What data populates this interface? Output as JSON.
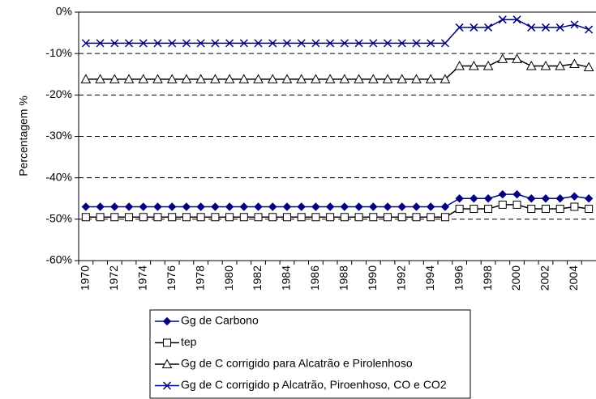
{
  "chart_data": {
    "type": "line",
    "y_label": "Percentagem %",
    "categories": [
      "1970",
      null,
      "1972",
      null,
      "1974",
      null,
      "1976",
      null,
      "1978",
      null,
      "1980",
      null,
      "1982",
      null,
      "1984",
      null,
      "1986",
      null,
      "1988",
      null,
      "1990",
      null,
      "1992",
      null,
      "1994",
      null,
      "1996",
      null,
      "1998",
      null,
      "2000",
      null,
      "2002",
      null,
      "2004",
      null
    ],
    "ylim": [
      -60,
      0
    ],
    "yticks": [
      {
        "value": -60,
        "label": "-60%"
      },
      {
        "value": -50,
        "label": "-50%"
      },
      {
        "value": -40,
        "label": "-40%"
      },
      {
        "value": -30,
        "label": "-30%"
      },
      {
        "value": -20,
        "label": "-20%"
      },
      {
        "value": -10,
        "label": "-10%"
      },
      {
        "value": 0,
        "label": "0%"
      }
    ],
    "grid": true,
    "series": [
      {
        "name": "Gg de Carbono",
        "color": "#000080",
        "marker": "diamond",
        "values": [
          -47,
          -47,
          -47,
          -47,
          -47,
          -47,
          -47,
          -47,
          -47,
          -47,
          -47,
          -47,
          -47,
          -47,
          -47,
          -47,
          -47,
          -47,
          -47,
          -47,
          -47,
          -47,
          -47,
          -47,
          -47,
          -47,
          -45,
          -45,
          -45,
          -44,
          -44,
          -45,
          -45,
          -45,
          -44.5,
          -45
        ]
      },
      {
        "name": "tep",
        "color": "#000000",
        "marker": "square",
        "values": [
          -49.5,
          -49.5,
          -49.5,
          -49.5,
          -49.5,
          -49.5,
          -49.5,
          -49.5,
          -49.5,
          -49.5,
          -49.5,
          -49.5,
          -49.5,
          -49.5,
          -49.5,
          -49.5,
          -49.5,
          -49.5,
          -49.5,
          -49.5,
          -49.5,
          -49.5,
          -49.5,
          -49.5,
          -49.5,
          -49.5,
          -47.5,
          -47.5,
          -47.5,
          -46.5,
          -46.5,
          -47.5,
          -47.5,
          -47.5,
          -47,
          -47.5
        ]
      },
      {
        "name": "Gg de C corrigido para Alcatrão e Pirolenhoso",
        "color": "#000000",
        "marker": "triangle",
        "values": [
          -16.2,
          -16.2,
          -16.2,
          -16.2,
          -16.2,
          -16.2,
          -16.2,
          -16.2,
          -16.2,
          -16.2,
          -16.2,
          -16.2,
          -16.2,
          -16.2,
          -16.2,
          -16.2,
          -16.2,
          -16.2,
          -16.2,
          -16.2,
          -16.2,
          -16.2,
          -16.2,
          -16.2,
          -16.2,
          -16.2,
          -13,
          -13,
          -13,
          -11.3,
          -11.3,
          -13,
          -13,
          -13,
          -12.5,
          -13.3
        ]
      },
      {
        "name": "Gg de C corrigido p Alcatrão, Piroenhoso, CO e CO2",
        "color": "#000080",
        "marker": "x",
        "values": [
          -7.5,
          -7.5,
          -7.5,
          -7.5,
          -7.5,
          -7.5,
          -7.5,
          -7.5,
          -7.5,
          -7.5,
          -7.5,
          -7.5,
          -7.5,
          -7.5,
          -7.5,
          -7.5,
          -7.5,
          -7.5,
          -7.5,
          -7.5,
          -7.5,
          -7.5,
          -7.5,
          -7.5,
          -7.5,
          -7.5,
          -3.7,
          -3.7,
          -3.7,
          -1.8,
          -1.8,
          -3.7,
          -3.7,
          -3.7,
          -3,
          -4.2
        ]
      }
    ]
  }
}
